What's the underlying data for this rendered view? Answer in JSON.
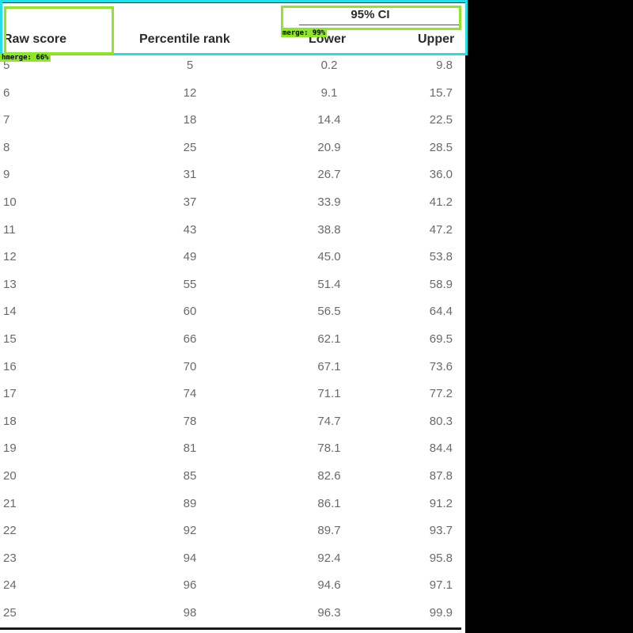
{
  "table": {
    "group_header": "95% CI",
    "columns": [
      "Raw score",
      "Percentile rank",
      "Lower",
      "Upper"
    ],
    "rows": [
      [
        "5",
        "5",
        "0.2",
        "9.8"
      ],
      [
        "6",
        "12",
        "9.1",
        "15.7"
      ],
      [
        "7",
        "18",
        "14.4",
        "22.5"
      ],
      [
        "8",
        "25",
        "20.9",
        "28.5"
      ],
      [
        "9",
        "31",
        "26.7",
        "36.0"
      ],
      [
        "10",
        "37",
        "33.9",
        "41.2"
      ],
      [
        "11",
        "43",
        "38.8",
        "47.2"
      ],
      [
        "12",
        "49",
        "45.0",
        "53.8"
      ],
      [
        "13",
        "55",
        "51.4",
        "58.9"
      ],
      [
        "14",
        "60",
        "56.5",
        "64.4"
      ],
      [
        "15",
        "66",
        "62.1",
        "69.5"
      ],
      [
        "16",
        "70",
        "67.1",
        "73.6"
      ],
      [
        "17",
        "74",
        "71.1",
        "77.2"
      ],
      [
        "18",
        "78",
        "74.7",
        "80.3"
      ],
      [
        "19",
        "81",
        "78.1",
        "84.4"
      ],
      [
        "20",
        "85",
        "82.6",
        "87.8"
      ],
      [
        "21",
        "89",
        "86.1",
        "91.2"
      ],
      [
        "22",
        "92",
        "89.7",
        "93.7"
      ],
      [
        "23",
        "94",
        "92.4",
        "95.8"
      ],
      [
        "24",
        "96",
        "94.6",
        "97.1"
      ],
      [
        "25",
        "98",
        "96.3",
        "99.9"
      ]
    ]
  },
  "overlays": {
    "tag_group": "merge: 99%",
    "tag_raw": "hmerge: 66%",
    "colors": {
      "cyan": "#21e0e8",
      "green": "#8ee52a"
    }
  }
}
